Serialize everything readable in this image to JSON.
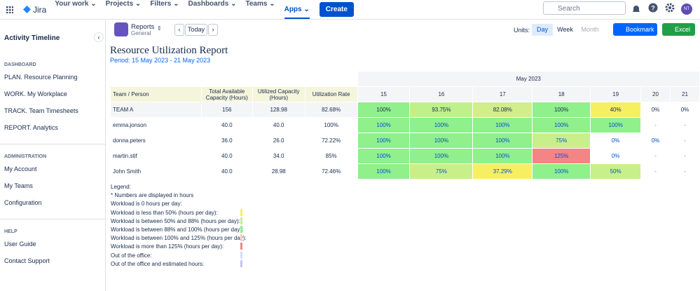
{
  "nav": {
    "product": "Jira",
    "items": [
      "Your work",
      "Projects",
      "Filters",
      "Dashboards",
      "Teams",
      "Apps"
    ],
    "create": "Create",
    "search": "Search",
    "avatar": "NT"
  },
  "sidebar": {
    "title": "Activity Timeline",
    "sections": [
      {
        "heading": "DASHBOARD",
        "links": [
          "PLAN. Resource Planning",
          "WORK. My Workplace",
          "TRACK. Team Timesheets",
          "REPORT. Analytics"
        ]
      },
      {
        "heading": "ADMINISTRATION",
        "links": [
          "My Account",
          "My Teams",
          "Configuration"
        ]
      },
      {
        "heading": "HELP",
        "links": [
          "User Guide",
          "Contact Support"
        ]
      }
    ]
  },
  "toolbar": {
    "reports": "Reports",
    "context": "General",
    "today": "Today",
    "units_label": "Units:",
    "units": [
      "Day",
      "Week",
      "Month"
    ],
    "bookmark": "Bookmark",
    "excel": "Excel"
  },
  "report": {
    "title": "Resource Utilization Report",
    "period": "Period: 15 May 2023 - 21 May 2023",
    "month": "May 2023",
    "columns": [
      "Team / Person",
      "Total Available Capacity (Hours)",
      "Utilized Capacity (Hours)",
      "Utilization Rate"
    ],
    "days": [
      "15",
      "16",
      "17",
      "18",
      "19",
      "20",
      "21"
    ],
    "rows": [
      {
        "name": "TEAM A",
        "total": "156",
        "utilized": "128.98",
        "rate": "82.68%",
        "cells": [
          {
            "text": "100%",
            "color": "#8ff08c"
          },
          {
            "text": "93.75%",
            "color": "#bff08a"
          },
          {
            "text": "82.08%",
            "color": "#d2ee8a"
          },
          {
            "text": "100%",
            "color": "#8ff08c"
          },
          {
            "text": "40%",
            "color": "#f6ef62"
          },
          {
            "text": "0%",
            "color": "#ffffff"
          },
          {
            "text": "0%",
            "color": "#ffffff"
          }
        ]
      },
      {
        "name": "emma.jonson",
        "total": "40.0",
        "utilized": "40.0",
        "rate": "100%",
        "cells": [
          {
            "text": "100%",
            "color": "#8ff08c"
          },
          {
            "text": "100%",
            "color": "#8ff08c"
          },
          {
            "text": "100%",
            "color": "#8ff08c"
          },
          {
            "text": "100%",
            "color": "#8ff08c"
          },
          {
            "text": "100%",
            "color": "#8ff08c"
          },
          {
            "text": "-",
            "color": "#ffffff"
          },
          {
            "text": "-",
            "color": "#ffffff"
          }
        ]
      },
      {
        "name": "donna.peters",
        "total": "36.0",
        "utilized": "26.0",
        "rate": "72.22%",
        "cells": [
          {
            "text": "100%",
            "color": "#8ff08c"
          },
          {
            "text": "100%",
            "color": "#8ff08c"
          },
          {
            "text": "100%",
            "color": "#8ff08c"
          },
          {
            "text": "75%",
            "color": "#c9ef8a"
          },
          {
            "text": "0%",
            "color": "#ffffff"
          },
          {
            "text": "0%",
            "color": "#ffffff"
          },
          {
            "text": "-",
            "color": "#ffffff"
          }
        ]
      },
      {
        "name": "martin.stif",
        "total": "40.0",
        "utilized": "34.0",
        "rate": "85%",
        "cells": [
          {
            "text": "100%",
            "color": "#8ff08c"
          },
          {
            "text": "100%",
            "color": "#8ff08c"
          },
          {
            "text": "100%",
            "color": "#8ff08c"
          },
          {
            "text": "125%",
            "color": "#f38585"
          },
          {
            "text": "0%",
            "color": "#ffffff"
          },
          {
            "text": "-",
            "color": "#ffffff"
          },
          {
            "text": "-",
            "color": "#ffffff"
          }
        ]
      },
      {
        "name": "John Smith",
        "total": "40.0",
        "utilized": "28.98",
        "rate": "72.46%",
        "cells": [
          {
            "text": "100%",
            "color": "#8ff08c"
          },
          {
            "text": "75%",
            "color": "#c9ef8a"
          },
          {
            "text": "37.29%",
            "color": "#f6ef62"
          },
          {
            "text": "100%",
            "color": "#8ff08c"
          },
          {
            "text": "50%",
            "color": "#c9ef8a"
          },
          {
            "text": "-",
            "color": "#ffffff"
          },
          {
            "text": "-",
            "color": "#ffffff"
          }
        ]
      }
    ]
  },
  "legend": {
    "title": "Legend:",
    "note": "* Numbers are displayed in hours",
    "items": [
      {
        "label": "Workload is 0 hours per day:",
        "color": "#ffffff"
      },
      {
        "label": "Workload is less than 50% (hours per day):",
        "color": "#f6ef62"
      },
      {
        "label": "Workload is between 50% and 88% (hours per day):",
        "color": "#c9ef8a"
      },
      {
        "label": "Workload is between 88% and 100% (hours per day):",
        "color": "#8ff08c"
      },
      {
        "label": "Workload is between 100% and 125% (hours per day):",
        "color": "#f6c9c9"
      },
      {
        "label": "Workload is more than 125% (hours per day):",
        "color": "#f38585"
      },
      {
        "label": "Out of the office:",
        "color": "#cfe0f3"
      },
      {
        "label": "Out of the office and estimated hours:",
        "color": "#c8c3ec"
      }
    ]
  }
}
